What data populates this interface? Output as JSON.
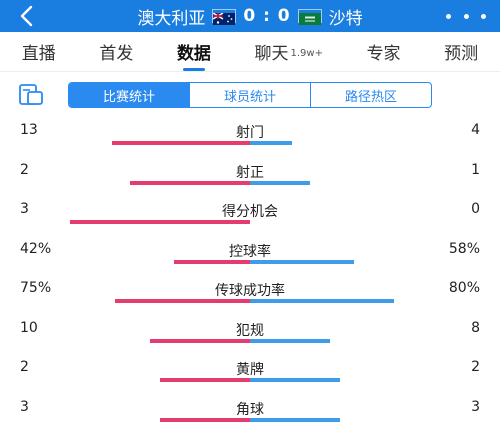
{
  "header": {
    "home_team": "澳大利亚",
    "score": "0 : 0",
    "away_team": "沙特",
    "home_flag_color": "#012169",
    "away_flag_color": "#0a7a3d",
    "background": "#1a7de0"
  },
  "tabs": [
    {
      "label": "直播",
      "suffix": ""
    },
    {
      "label": "首发",
      "suffix": ""
    },
    {
      "label": "数据",
      "suffix": ""
    },
    {
      "label": "聊天",
      "suffix": "1.9w+"
    },
    {
      "label": "专家",
      "suffix": ""
    },
    {
      "label": "预测",
      "suffix": ""
    }
  ],
  "active_tab": "数据",
  "subtabs": [
    "比赛统计",
    "球员统计",
    "路径热区"
  ],
  "active_subtab": "比赛统计",
  "colors": {
    "home_bar": "#e43c6e",
    "away_bar": "#3e9ce8",
    "accent": "#2a8af0"
  },
  "stats": [
    {
      "name": "射门",
      "home": "13",
      "away": "4",
      "home_share": 0.765,
      "away_share": 0.235
    },
    {
      "name": "射正",
      "home": "2",
      "away": "1",
      "home_share": 0.667,
      "away_share": 0.333
    },
    {
      "name": "得分机会",
      "home": "3",
      "away": "0",
      "home_share": 1.0,
      "away_share": 0.0
    },
    {
      "name": "控球率",
      "home": "42%",
      "away": "58%",
      "home_share": 0.42,
      "away_share": 0.58
    },
    {
      "name": "传球成功率",
      "home": "75%",
      "away": "80%",
      "home_share": 0.75,
      "away_share": 0.8
    },
    {
      "name": "犯规",
      "home": "10",
      "away": "8",
      "home_share": 0.556,
      "away_share": 0.444
    },
    {
      "name": "黄牌",
      "home": "2",
      "away": "2",
      "home_share": 0.5,
      "away_share": 0.5
    },
    {
      "name": "角球",
      "home": "3",
      "away": "3",
      "home_share": 0.5,
      "away_share": 0.5
    }
  ]
}
